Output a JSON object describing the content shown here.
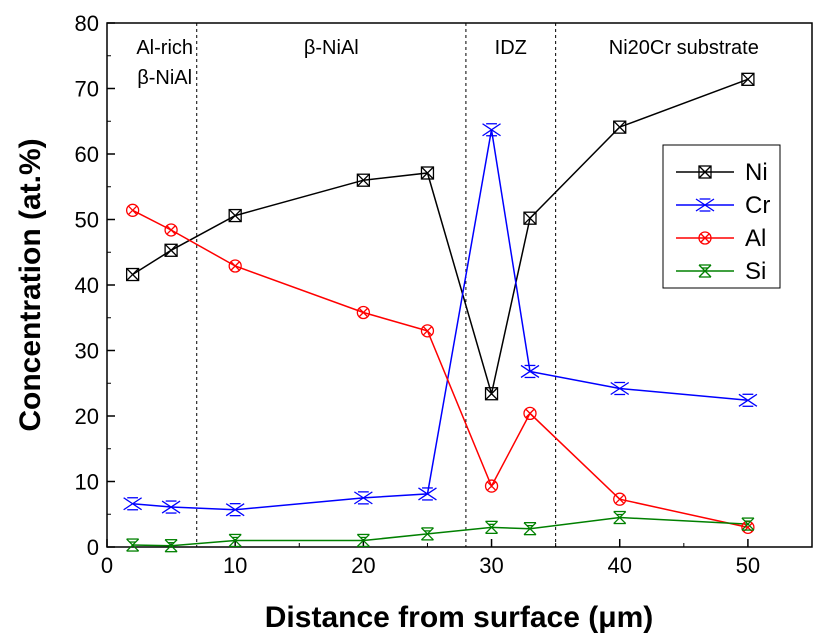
{
  "chart_data": {
    "type": "line",
    "xlabel": "Distance from surface (μm)",
    "ylabel": "Concentration (at.%)",
    "xlim": [
      0,
      55
    ],
    "ylim": [
      0,
      80
    ],
    "x_ticks": [
      0,
      10,
      20,
      30,
      40,
      50
    ],
    "y_ticks": [
      0,
      10,
      20,
      30,
      40,
      50,
      60,
      70,
      80
    ],
    "x": [
      2,
      5,
      10,
      20,
      25,
      30,
      33,
      40,
      50
    ],
    "series": [
      {
        "name": "Ni",
        "color": "#000000",
        "marker": "square-x",
        "values": [
          41.6,
          45.3,
          50.6,
          56.0,
          57.1,
          23.4,
          50.2,
          64.1,
          71.4
        ]
      },
      {
        "name": "Cr",
        "color": "#0000ff",
        "marker": "star-x",
        "values": [
          6.6,
          6.1,
          5.7,
          7.5,
          8.1,
          63.7,
          26.8,
          24.2,
          22.4
        ]
      },
      {
        "name": "Al",
        "color": "#ff0000",
        "marker": "circle-x",
        "values": [
          51.4,
          48.4,
          42.9,
          35.8,
          33.0,
          9.3,
          20.4,
          7.3,
          3.0
        ]
      },
      {
        "name": "Si",
        "color": "#008000",
        "marker": "hourglass-x",
        "values": [
          0.3,
          0.2,
          1.0,
          1.0,
          2.0,
          3.0,
          2.8,
          4.5,
          3.5
        ]
      }
    ],
    "region_boundaries": [
      7,
      28,
      35
    ],
    "region_labels": [
      {
        "lines": [
          "Al-rich",
          "β-NiAl"
        ],
        "x_center": 4.5
      },
      {
        "lines": [
          "β-NiAl"
        ],
        "x_center": 17.5
      },
      {
        "lines": [
          "IDZ"
        ],
        "x_center": 31.5
      },
      {
        "lines": [
          "Ni20Cr substrate"
        ],
        "x_center": 45
      }
    ],
    "legend_position": "right",
    "grid": false
  }
}
